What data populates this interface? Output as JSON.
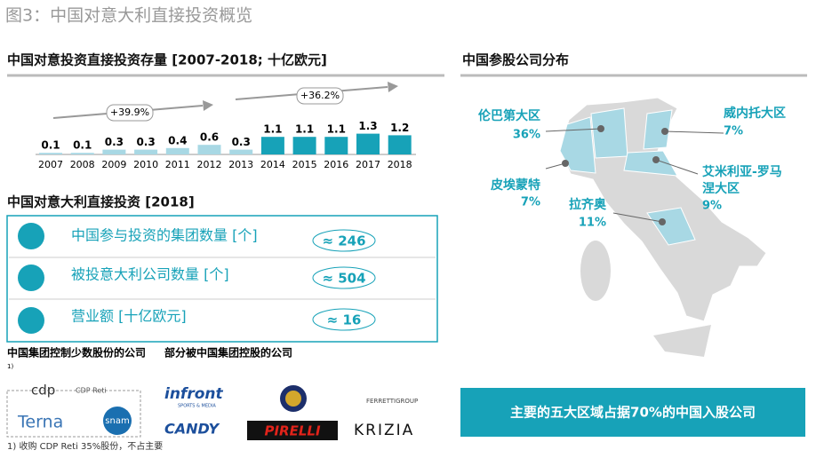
{
  "title": "图3：中国对意大利直接投资概览",
  "chart_data": {
    "type": "bar",
    "title": "中国对意投资直接投资存量 [2007-2018; 十亿欧元]",
    "categories": [
      "2007",
      "2008",
      "2009",
      "2010",
      "2011",
      "2012",
      "2013",
      "2014",
      "2015",
      "2016",
      "2017",
      "2018"
    ],
    "values": [
      0.1,
      0.1,
      0.3,
      0.3,
      0.4,
      0.6,
      0.3,
      1.1,
      1.1,
      1.1,
      1.3,
      1.2
    ],
    "colors": [
      "#a8d8e4",
      "#a8d8e4",
      "#a8d8e4",
      "#a8d8e4",
      "#a8d8e4",
      "#a8d8e4",
      "#a8d8e4",
      "#17a2b8",
      "#17a2b8",
      "#17a2b8",
      "#17a2b8",
      "#17a2b8"
    ],
    "annotations": [
      "+39.9%",
      "+36.2%"
    ]
  },
  "investment": {
    "title": "中国对意大利直接投资 [2018]",
    "rows": [
      {
        "label": "中国参与投资的集团数量 [个]",
        "value": "≈ 246"
      },
      {
        "label": "被投意大利公司数量 [个]",
        "value": "≈ 504"
      },
      {
        "label": "营业额 [十亿欧元]",
        "value": "≈ 16"
      }
    ]
  },
  "companies": {
    "minority_title": "中国集团控制少数股份的公司",
    "footnote_mark": "1)",
    "majority_title": "部分被中国集团控股的公司",
    "minority_logos": [
      "cdp",
      "CDP Reti",
      "Terna",
      "snam"
    ],
    "majority_logos": [
      "infront",
      "SPORTS & MEDIA",
      "FERRETTIGROUP",
      "CANDY",
      "PIRELLI",
      "KRIZIA"
    ]
  },
  "map": {
    "title": "中国参股公司分布",
    "regions": [
      {
        "name": "伦巴第大区",
        "share": "36%"
      },
      {
        "name": "威内托大区",
        "share": "7%"
      },
      {
        "name": "皮埃蒙特",
        "share": "7%"
      },
      {
        "name": "艾米利亚-罗马",
        "name2": "涅大区",
        "share": "9%"
      },
      {
        "name": "拉齐奥",
        "share": "11%"
      }
    ],
    "summary": "主要的五大区域占据70%的中国入股公司"
  },
  "footnote": "1) 收购 CDP Reti 35%股份，不占主要"
}
